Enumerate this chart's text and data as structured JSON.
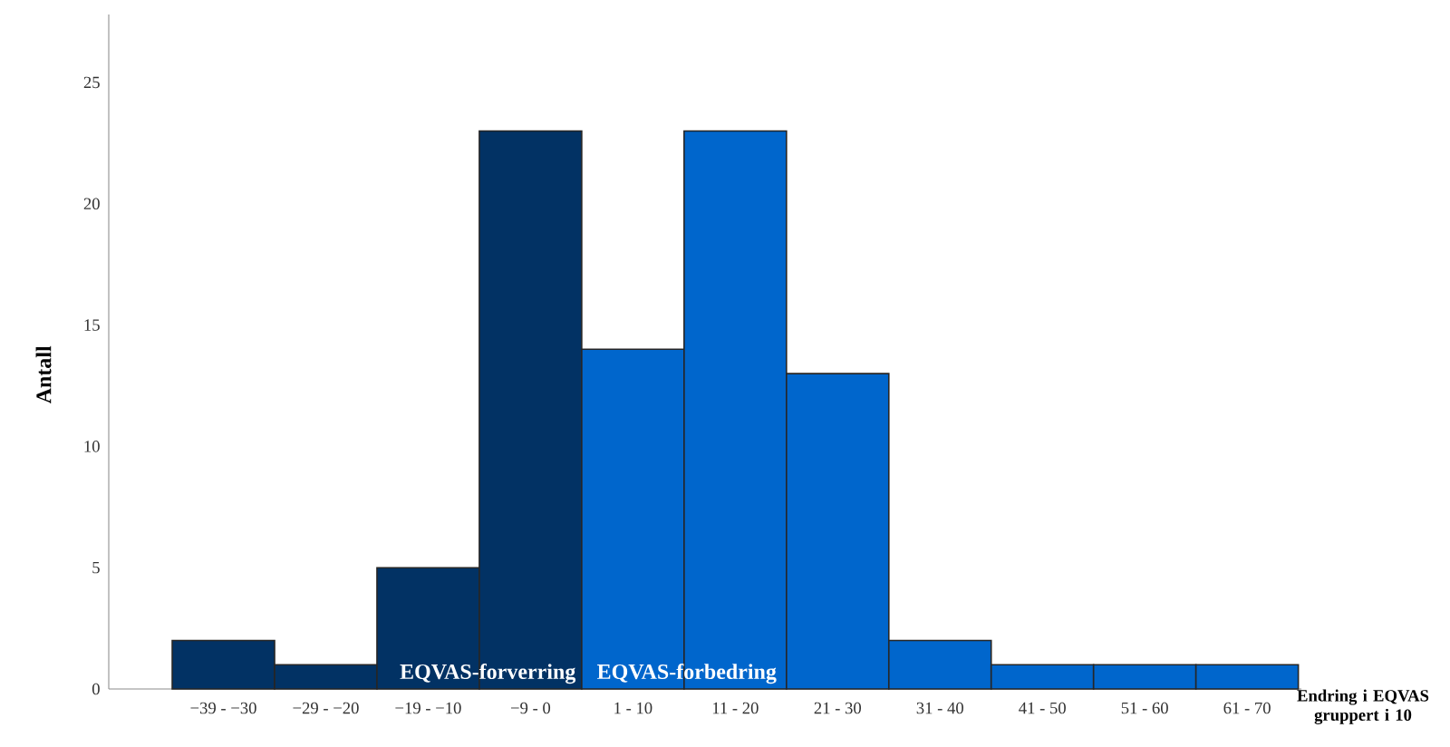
{
  "chart_data": {
    "type": "bar",
    "xlabel": "Endring i EQVAS gruppert i 10",
    "ylabel": "Antall",
    "categories": [
      "−39 - −30",
      "−29 - −20",
      "−19 - −10",
      "−9 - 0",
      "1 - 10",
      "11 - 20",
      "21 - 30",
      "31 - 40",
      "41 - 50",
      "51 - 60",
      "61 - 70"
    ],
    "values": [
      2,
      1,
      5,
      23,
      14,
      23,
      13,
      2,
      1,
      1,
      1
    ],
    "colors": [
      "#023264",
      "#023264",
      "#023264",
      "#023264",
      "#0066cc",
      "#0066cc",
      "#0066cc",
      "#0066cc",
      "#0066cc",
      "#0066cc",
      "#0066cc"
    ],
    "ylim": [
      0,
      27.8
    ],
    "yticks": [
      0,
      5,
      10,
      15,
      20,
      25
    ],
    "annotations": [
      "EQVAS-forverring",
      "EQVAS-forbedring"
    ],
    "grid": false
  }
}
